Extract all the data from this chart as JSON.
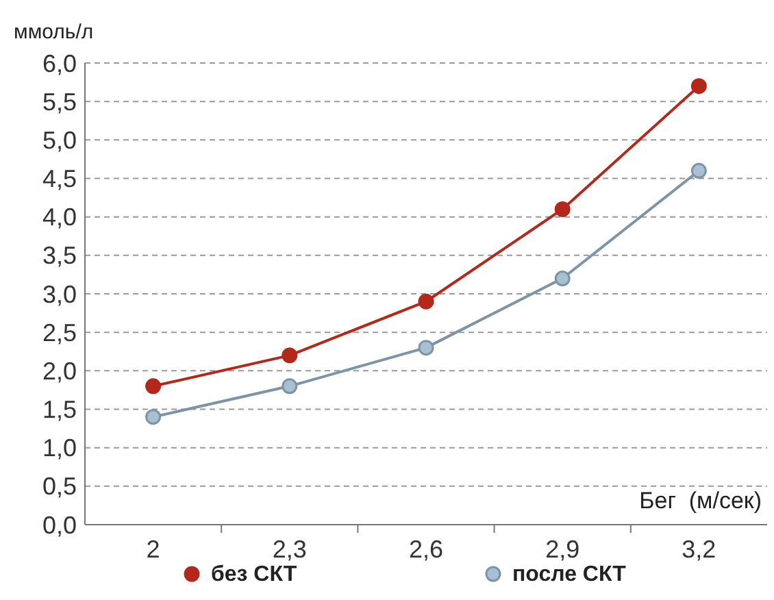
{
  "chart_data": {
    "type": "line",
    "ylabel": "ммоль/л",
    "xlabel": "Бег  (м/сек)",
    "categories": [
      "2",
      "2,3",
      "2,6",
      "2,9",
      "3,2"
    ],
    "series": [
      {
        "name": "без СКТ",
        "color": "#b3281b",
        "values": [
          1.8,
          2.2,
          2.9,
          4.1,
          5.7
        ]
      },
      {
        "name": "после СКТ",
        "color": "#7d93a6",
        "values": [
          1.4,
          1.8,
          2.3,
          3.2,
          4.6
        ]
      }
    ],
    "ylim": [
      0,
      6
    ],
    "yticks": [
      {
        "value": 0,
        "label": "0,0"
      },
      {
        "value": 0.5,
        "label": "0,5"
      },
      {
        "value": 1,
        "label": "1,0"
      },
      {
        "value": 1.5,
        "label": "1,5"
      },
      {
        "value": 2,
        "label": "2,0"
      },
      {
        "value": 2.5,
        "label": "2,5"
      },
      {
        "value": 3,
        "label": "3,0"
      },
      {
        "value": 3.5,
        "label": "3,5"
      },
      {
        "value": 4,
        "label": "4,0"
      },
      {
        "value": 4.5,
        "label": "4,5"
      },
      {
        "value": 5,
        "label": "5,0"
      },
      {
        "value": 5.5,
        "label": "5,5"
      },
      {
        "value": 6,
        "label": "6,0"
      }
    ],
    "grid": "y",
    "legend": "bottom",
    "marker": "circle",
    "line_style": "solid"
  }
}
